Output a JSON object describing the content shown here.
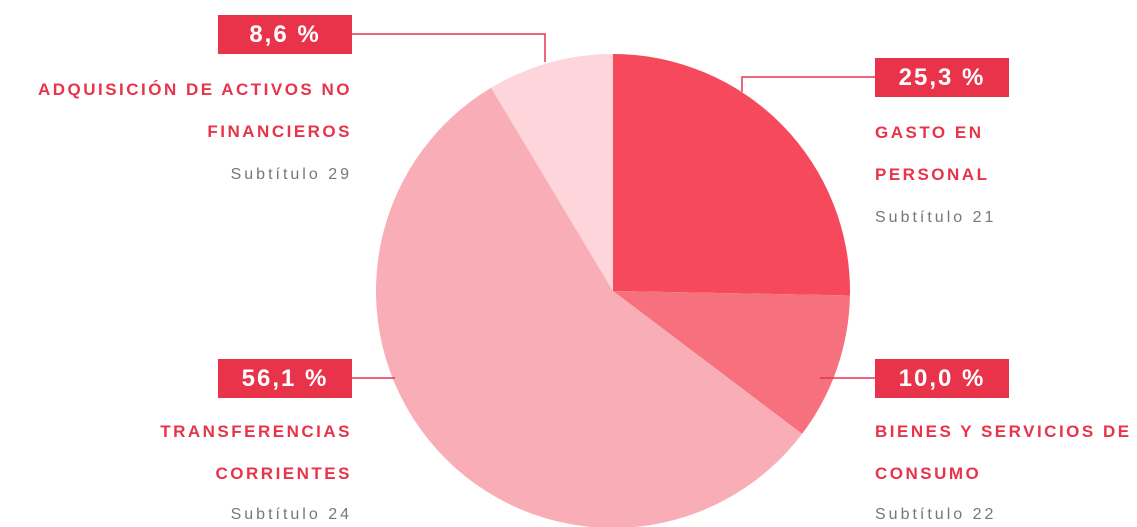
{
  "chart_data": {
    "type": "pie",
    "categories": [
      "GASTO EN PERSONAL",
      "BIENES Y SERVICIOS DE CONSUMO",
      "TRANSFERENCIAS CORRIENTES",
      "ADQUISICIÓN DE ACTIVOS NO FINANCIEROS"
    ],
    "sublabels": [
      "Subtítulo 21",
      "Subtítulo 22",
      "Subtítulo 24",
      "Subtítulo 29"
    ],
    "values": [
      25.3,
      10.0,
      56.1,
      8.6
    ],
    "value_labels": [
      "25,3 %",
      "10,0 %",
      "56,1 %",
      "8,6 %"
    ],
    "colors": [
      "#f64a5c",
      "#f6717d",
      "#f9adb6",
      "#fdd5da"
    ]
  }
}
